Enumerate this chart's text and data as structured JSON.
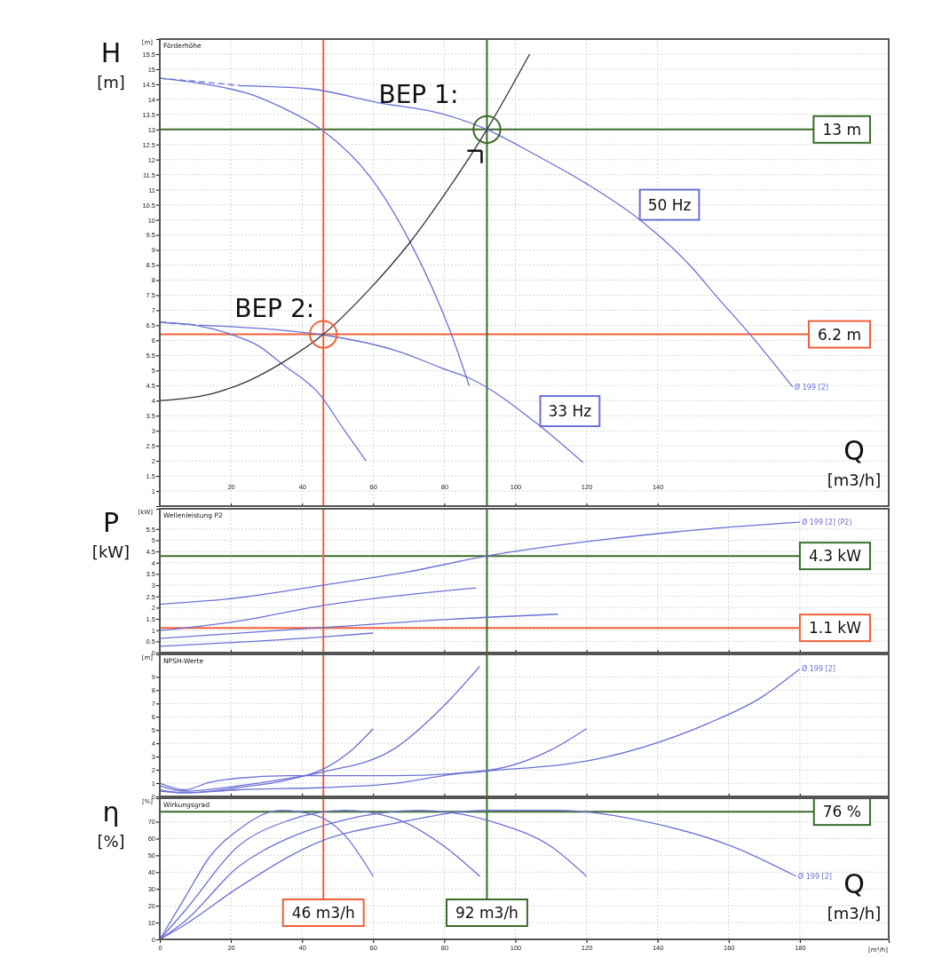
{
  "chart_data": [
    {
      "type": "line",
      "title": "Förderhöhe",
      "ylabel": "H\n[m]",
      "xlabel": "Q\n[m3/h]",
      "xlim": [
        0,
        205
      ],
      "ylim": [
        0.5,
        16
      ],
      "xticks": [
        20,
        40,
        60,
        80,
        100,
        120,
        140
      ],
      "yticks": [
        1,
        1.5,
        2,
        2.5,
        3,
        3.5,
        4,
        4.5,
        5,
        5.5,
        6,
        6.5,
        7,
        7.5,
        8,
        8.5,
        9,
        9.5,
        10,
        10.5,
        11,
        11.5,
        12,
        12.5,
        13,
        13.5,
        14,
        14.5,
        15,
        15.5
      ],
      "grid": true,
      "series": [
        {
          "color": "#6b70d4",
          "line_style": "dashed",
          "x": [
            0,
            10,
            23
          ],
          "values": [
            14.7,
            14.6,
            14.45
          ]
        },
        {
          "color": "#6b70d4",
          "x": [
            23,
            42,
            61,
            80,
            92,
            105,
            120,
            135,
            149,
            157,
            166,
            178
          ],
          "values": [
            14.45,
            14.35,
            13.9,
            13.5,
            13.0,
            12.2,
            11.2,
            10.0,
            8.5,
            7.4,
            6.2,
            4.45
          ]
        },
        {
          "color": "#6b70d4",
          "x": [
            0,
            13,
            26,
            34,
            46,
            59,
            70,
            82,
            87
          ],
          "values": [
            14.7,
            14.5,
            14.15,
            13.75,
            12.95,
            11.45,
            9.35,
            6.2,
            4.5
          ]
        },
        {
          "color": "#6b70d4",
          "line_style": "dashed",
          "x": [
            0,
            12
          ],
          "values": [
            6.6,
            6.5
          ]
        },
        {
          "color": "#6b70d4",
          "x": [
            12,
            30,
            46,
            67,
            80,
            87,
            107,
            119
          ],
          "values": [
            6.5,
            6.38,
            6.18,
            5.64,
            5.05,
            4.75,
            3.15,
            1.95
          ]
        },
        {
          "color": "#6b70d4",
          "x": [
            0,
            10,
            20,
            28,
            34,
            45,
            52,
            58
          ],
          "values": [
            6.6,
            6.5,
            6.2,
            5.8,
            5.25,
            4.2,
            3.0,
            2.0
          ]
        },
        {
          "color": "#333333",
          "x": [
            0,
            15,
            25,
            35,
            46,
            59,
            70,
            81,
            92,
            104
          ],
          "values": [
            4.0,
            4.24,
            4.66,
            5.3,
            6.2,
            7.7,
            9.2,
            11.0,
            13.0,
            15.5
          ]
        },
        {
          "type": "scatter",
          "marker": "circle",
          "color": "#3a6b2a",
          "x": [
            92
          ],
          "values": [
            13.0
          ]
        },
        {
          "type": "scatter",
          "marker": "circle",
          "color": "#f0603a",
          "x": [
            46
          ],
          "values": [
            6.2
          ]
        }
      ],
      "ref_lines": [
        {
          "axis": "y",
          "value": 13,
          "label": "13 m",
          "color": "#3a6b2a"
        },
        {
          "axis": "y",
          "value": 6.2,
          "label": "6.2 m",
          "color": "#f0603a"
        },
        {
          "axis": "x",
          "value": 92,
          "color": "#3a6b2a"
        },
        {
          "axis": "x",
          "value": 46,
          "color": "#f0603a"
        }
      ],
      "annotations": [
        "[m]",
        {
          "text": "BEP 1:",
          "x": 92,
          "y": 13
        },
        {
          "text": "BEP 2:",
          "x": 46,
          "y": 6.2
        },
        {
          "text": "50 Hz",
          "x": 135,
          "y": 10.0
        },
        {
          "text": "33 Hz",
          "x": 107,
          "y": 3.15
        },
        {
          "text": "Ø 199 [2]",
          "x": 178,
          "y": 4.45
        }
      ]
    },
    {
      "type": "line",
      "title": "Wellenleistung P2",
      "ylabel": "P\n[kW]",
      "xlim": [
        0,
        205
      ],
      "ylim": [
        0,
        6.4
      ],
      "xticks": [
        0,
        20,
        40,
        60,
        80,
        100,
        120,
        140,
        160,
        180
      ],
      "yticks": [
        0,
        0.5,
        1,
        1.5,
        2,
        2.5,
        3,
        3.5,
        4,
        4.5,
        5,
        5.5
      ],
      "grid": true,
      "tick_labels": "y",
      "series": [
        {
          "color": "#6b70d4",
          "x": [
            0,
            20,
            46,
            70,
            92,
            125,
            154,
            180
          ],
          "values": [
            2.15,
            2.4,
            3.0,
            3.6,
            4.3,
            5.03,
            5.5,
            5.8
          ]
        },
        {
          "color": "#6b70d4",
          "x": [
            0,
            22,
            46,
            89
          ],
          "values": [
            0.98,
            1.4,
            2.1,
            2.88
          ]
        },
        {
          "color": "#6b70d4",
          "x": [
            0,
            46,
            92,
            112
          ],
          "values": [
            0.63,
            1.12,
            1.57,
            1.71
          ]
        },
        {
          "color": "#6b70d4",
          "x": [
            0,
            46,
            60
          ],
          "values": [
            0.28,
            0.7,
            0.87
          ]
        }
      ],
      "ref_lines": [
        {
          "axis": "y",
          "value": 4.3,
          "label": "4.3 kW",
          "color": "#3a6b2a"
        },
        {
          "axis": "y",
          "value": 1.1,
          "label": "1.1 kW",
          "color": "#f0603a"
        },
        {
          "axis": "x",
          "value": 92,
          "color": "#3a6b2a"
        },
        {
          "axis": "x",
          "value": 46,
          "color": "#f0603a"
        }
      ],
      "annotations": [
        "[kW]",
        {
          "text": "Ø 199 [2] (P2)",
          "x": 180,
          "y": 5.8
        }
      ]
    },
    {
      "type": "line",
      "title": "NPSH-Werte",
      "xlim": [
        0,
        205
      ],
      "ylim": [
        0,
        10.7
      ],
      "xticks": [
        0,
        20,
        40,
        60,
        80,
        100,
        120,
        140,
        160,
        180
      ],
      "yticks": [
        0,
        1,
        2,
        3,
        4,
        5,
        6,
        7,
        8,
        9
      ],
      "grid": true,
      "tick_labels": "y",
      "series": [
        {
          "color": "#6b70d4",
          "x": [
            0,
            7,
            22,
            36,
            46,
            54,
            60
          ],
          "values": [
            0.5,
            0.27,
            0.67,
            1.25,
            2.07,
            3.5,
            5.1
          ]
        },
        {
          "color": "#6b70d4",
          "x": [
            0,
            7,
            22,
            36,
            46,
            66,
            80,
            90
          ],
          "values": [
            0.8,
            0.4,
            0.8,
            1.35,
            1.85,
            3.6,
            6.85,
            9.8
          ]
        },
        {
          "color": "#6b70d4",
          "x": [
            0,
            7,
            14,
            22,
            36,
            66,
            92,
            110,
            120
          ],
          "values": [
            1.0,
            0.5,
            1.06,
            1.37,
            1.56,
            1.56,
            1.96,
            3.5,
            5.1
          ]
        },
        {
          "color": "#6b70d4",
          "x": [
            0,
            7,
            22,
            46,
            66,
            83,
            92,
            125,
            154,
            169,
            180
          ],
          "values": [
            0.4,
            0.27,
            0.5,
            0.67,
            0.98,
            1.68,
            1.9,
            2.93,
            5.48,
            7.43,
            9.6
          ]
        }
      ],
      "ref_lines": [
        {
          "axis": "x",
          "value": 92,
          "color": "#3a6b2a"
        },
        {
          "axis": "x",
          "value": 46,
          "color": "#f0603a"
        }
      ],
      "annotations": [
        "[m]",
        {
          "text": "Ø 199 [2]",
          "x": 180,
          "y": 9.6
        }
      ]
    },
    {
      "type": "line",
      "title": "Wirkungsgrad",
      "ylabel": "η\n[%]",
      "xlabel": "Q\n[m3/h]",
      "xlim": [
        0,
        205
      ],
      "ylim": [
        0,
        84
      ],
      "xticks": [
        0,
        20,
        40,
        60,
        80,
        100,
        120,
        140,
        160,
        180
      ],
      "yticks": [
        0,
        10,
        20,
        30,
        40,
        50,
        60,
        70
      ],
      "grid": true,
      "series": [
        {
          "color": "#6b70d4",
          "x": [
            0,
            7,
            14,
            22,
            34,
            44,
            52,
            60
          ],
          "values": [
            0,
            24.6,
            49,
            65,
            76.8,
            73.7,
            62,
            37.5
          ]
        },
        {
          "color": "#6b70d4",
          "x": [
            0,
            7,
            22,
            36,
            52,
            66,
            80,
            90
          ],
          "values": [
            0,
            16.9,
            55.3,
            70.6,
            76.8,
            72,
            55.3,
            37.5
          ]
        },
        {
          "color": "#6b70d4",
          "x": [
            0,
            7,
            22,
            36,
            51,
            73,
            95,
            110,
            120
          ],
          "values": [
            0,
            10.7,
            43,
            60,
            70.6,
            76.8,
            69,
            55.3,
            37.5
          ]
        },
        {
          "color": "#6b70d4",
          "x": [
            0,
            7,
            22,
            46,
            66,
            92,
            112,
            139,
            161,
            179
          ],
          "values": [
            0,
            8.6,
            30.7,
            59,
            69,
            76.8,
            76.8,
            69,
            55.3,
            37.5
          ]
        }
      ],
      "ref_lines": [
        {
          "axis": "y",
          "value": 76,
          "label": "76 %",
          "color": "#3a6b2a"
        },
        {
          "axis": "x",
          "value": 92,
          "label": "92 m3/h",
          "color": "#3a6b2a"
        },
        {
          "axis": "x",
          "value": 46,
          "label": "46 m3/h",
          "color": "#f0603a"
        }
      ],
      "annotations": [
        "[%]",
        {
          "text": "Ø 199 [2]",
          "x": 179,
          "y": 37.5
        },
        "[m³/h]"
      ]
    }
  ]
}
